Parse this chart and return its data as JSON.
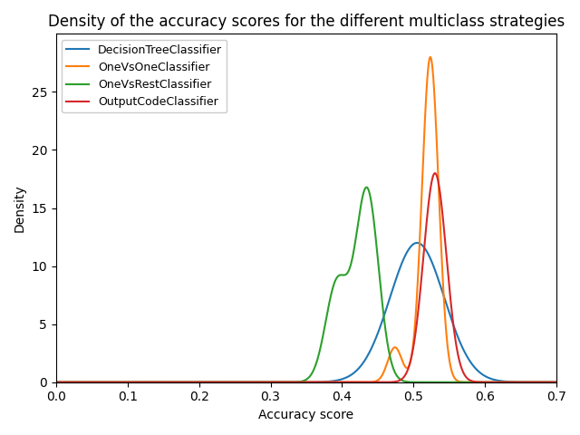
{
  "title": "Density of the accuracy scores for the different multiclass strategies",
  "xlabel": "Accuracy score",
  "ylabel": "Density",
  "xlim": [
    0.0,
    0.7
  ],
  "ylim": [
    0,
    30
  ],
  "xticks": [
    0.0,
    0.1,
    0.2,
    0.3,
    0.4,
    0.5,
    0.6,
    0.7
  ],
  "yticks": [
    0,
    5,
    10,
    15,
    20,
    25
  ],
  "figsize": [
    6.4,
    4.8
  ],
  "dpi": 100,
  "curves": {
    "DecisionTreeClassifier": {
      "color": "#1f77b4",
      "components": [
        {
          "mu": 0.505,
          "sig": 0.038,
          "amp": 12.0
        }
      ]
    },
    "OneVsOneClassifier": {
      "color": "#ff7f0e",
      "components": [
        {
          "mu": 0.5235,
          "sig": 0.0115,
          "amp": 28.0
        },
        {
          "mu": 0.474,
          "sig": 0.01,
          "amp": 3.0
        }
      ]
    },
    "OneVsRestClassifier": {
      "color": "#2ca02c",
      "components": [
        {
          "mu": 0.435,
          "sig": 0.016,
          "amp": 16.5
        },
        {
          "mu": 0.393,
          "sig": 0.016,
          "amp": 8.5
        }
      ]
    },
    "OutputCodeClassifier": {
      "color": "#d62728",
      "components": [
        {
          "mu": 0.53,
          "sig": 0.016,
          "amp": 18.0
        }
      ]
    }
  },
  "legend_order": [
    "DecisionTreeClassifier",
    "OneVsOneClassifier",
    "OneVsRestClassifier",
    "OutputCodeClassifier"
  ]
}
